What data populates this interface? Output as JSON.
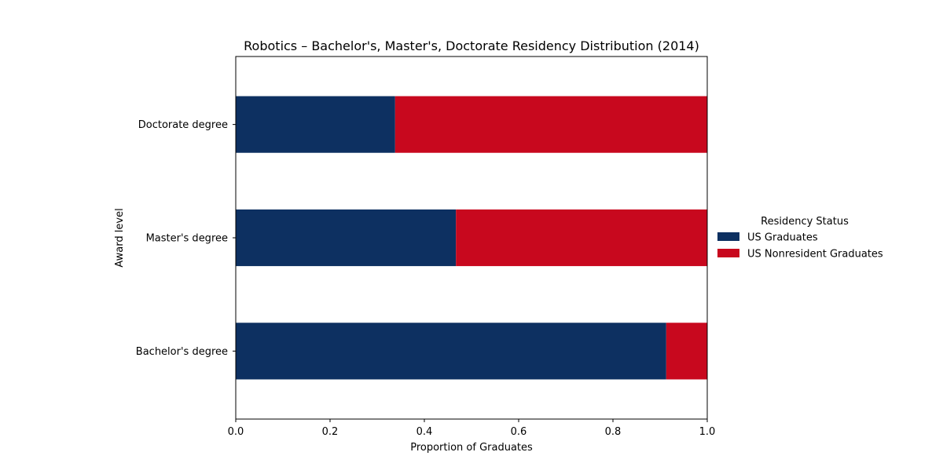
{
  "chart_data": {
    "type": "bar",
    "orientation": "horizontal",
    "stacked": true,
    "title": "Robotics – Bachelor's, Master's, Doctorate Residency Distribution (2014)",
    "xlabel": "Proportion of Graduates",
    "ylabel": "Award level",
    "xlim": [
      0,
      1
    ],
    "xticks": [
      "0.0",
      "0.2",
      "0.4",
      "0.6",
      "0.8",
      "1.0"
    ],
    "categories": [
      "Bachelor's degree",
      "Master's degree",
      "Doctorate degree"
    ],
    "series": [
      {
        "name": "US Graduates",
        "values": [
          0.913,
          0.467,
          0.338
        ],
        "color": "#0d3061"
      },
      {
        "name": "US Nonresident Graduates",
        "values": [
          0.087,
          0.533,
          0.662
        ],
        "color": "#c8081e"
      }
    ],
    "legend": {
      "title": "Residency Status",
      "position": "right"
    },
    "grid": false
  }
}
